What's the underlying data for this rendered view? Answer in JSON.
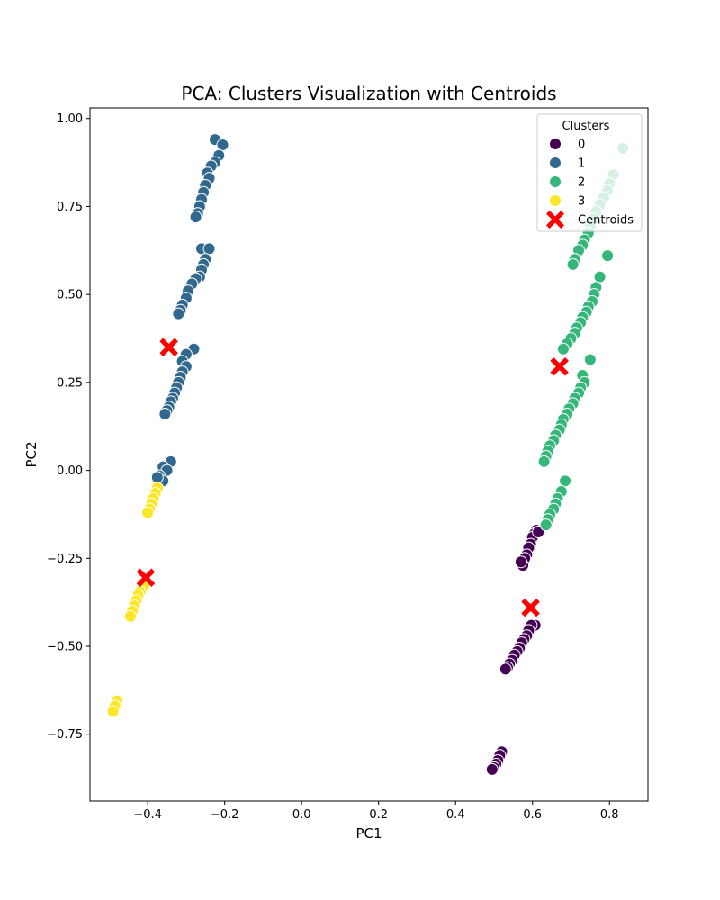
{
  "chart_data": {
    "type": "scatter",
    "title": "PCA: Clusters Visualization with Centroids",
    "xlabel": "PC1",
    "ylabel": "PC2",
    "xlim": [
      -0.55,
      0.9
    ],
    "ylim": [
      -0.94,
      1.03
    ],
    "xticks": [
      -0.4,
      -0.2,
      0.0,
      0.2,
      0.4,
      0.6,
      0.8
    ],
    "xtick_labels": [
      "−0.4",
      "−0.2",
      "0.0",
      "0.2",
      "0.4",
      "0.6",
      "0.8"
    ],
    "yticks": [
      -0.75,
      -0.5,
      -0.25,
      0.0,
      0.25,
      0.5,
      0.75,
      1.0
    ],
    "ytick_labels": [
      "−0.75",
      "−0.50",
      "−0.25",
      "0.00",
      "0.25",
      "0.50",
      "0.75",
      "1.00"
    ],
    "grid": false,
    "legend": {
      "title": "Clusters",
      "placement": "top-right"
    },
    "series": [
      {
        "name": "0",
        "color": "#440154",
        "points": [
          [
            0.61,
            -0.17
          ],
          [
            0.605,
            -0.18
          ],
          [
            0.6,
            -0.19
          ],
          [
            0.595,
            -0.21
          ],
          [
            0.59,
            -0.22
          ],
          [
            0.585,
            -0.24
          ],
          [
            0.58,
            -0.25
          ],
          [
            0.575,
            -0.27
          ],
          [
            0.57,
            -0.26
          ],
          [
            0.615,
            -0.175
          ],
          [
            0.607,
            -0.44
          ],
          [
            0.597,
            -0.44
          ],
          [
            0.59,
            -0.455
          ],
          [
            0.585,
            -0.47
          ],
          [
            0.578,
            -0.48
          ],
          [
            0.572,
            -0.49
          ],
          [
            0.566,
            -0.505
          ],
          [
            0.56,
            -0.515
          ],
          [
            0.553,
            -0.525
          ],
          [
            0.547,
            -0.54
          ],
          [
            0.54,
            -0.55
          ],
          [
            0.535,
            -0.56
          ],
          [
            0.53,
            -0.565
          ],
          [
            0.52,
            -0.8
          ],
          [
            0.515,
            -0.81
          ],
          [
            0.51,
            -0.825
          ],
          [
            0.505,
            -0.835
          ],
          [
            0.5,
            -0.845
          ],
          [
            0.495,
            -0.85
          ]
        ]
      },
      {
        "name": "1",
        "color": "#31688e",
        "points": [
          [
            -0.225,
            0.94
          ],
          [
            -0.205,
            0.925
          ],
          [
            -0.215,
            0.895
          ],
          [
            -0.225,
            0.875
          ],
          [
            -0.235,
            0.865
          ],
          [
            -0.245,
            0.845
          ],
          [
            -0.24,
            0.83
          ],
          [
            -0.25,
            0.81
          ],
          [
            -0.255,
            0.79
          ],
          [
            -0.26,
            0.77
          ],
          [
            -0.265,
            0.75
          ],
          [
            -0.27,
            0.73
          ],
          [
            -0.275,
            0.72
          ],
          [
            -0.26,
            0.63
          ],
          [
            -0.24,
            0.63
          ],
          [
            -0.25,
            0.6
          ],
          [
            -0.255,
            0.585
          ],
          [
            -0.26,
            0.57
          ],
          [
            -0.265,
            0.55
          ],
          [
            -0.275,
            0.545
          ],
          [
            -0.285,
            0.53
          ],
          [
            -0.295,
            0.51
          ],
          [
            -0.3,
            0.49
          ],
          [
            -0.31,
            0.47
          ],
          [
            -0.315,
            0.455
          ],
          [
            -0.32,
            0.445
          ],
          [
            -0.28,
            0.345
          ],
          [
            -0.3,
            0.33
          ],
          [
            -0.31,
            0.31
          ],
          [
            -0.3,
            0.295
          ],
          [
            -0.31,
            0.28
          ],
          [
            -0.315,
            0.265
          ],
          [
            -0.32,
            0.25
          ],
          [
            -0.325,
            0.235
          ],
          [
            -0.33,
            0.22
          ],
          [
            -0.335,
            0.205
          ],
          [
            -0.34,
            0.195
          ],
          [
            -0.345,
            0.18
          ],
          [
            -0.35,
            0.17
          ],
          [
            -0.355,
            0.16
          ],
          [
            -0.34,
            0.025
          ],
          [
            -0.36,
            0.01
          ],
          [
            -0.35,
            0.0
          ],
          [
            -0.37,
            -0.015
          ],
          [
            -0.36,
            -0.03
          ],
          [
            -0.375,
            -0.02
          ]
        ]
      },
      {
        "name": "2",
        "color": "#35b779",
        "points": [
          [
            0.835,
            0.915
          ],
          [
            0.81,
            0.84
          ],
          [
            0.8,
            0.815
          ],
          [
            0.795,
            0.795
          ],
          [
            0.785,
            0.775
          ],
          [
            0.775,
            0.755
          ],
          [
            0.765,
            0.735
          ],
          [
            0.76,
            0.715
          ],
          [
            0.75,
            0.695
          ],
          [
            0.745,
            0.675
          ],
          [
            0.735,
            0.655
          ],
          [
            0.73,
            0.64
          ],
          [
            0.72,
            0.625
          ],
          [
            0.71,
            0.6
          ],
          [
            0.705,
            0.585
          ],
          [
            0.795,
            0.61
          ],
          [
            0.775,
            0.55
          ],
          [
            0.765,
            0.52
          ],
          [
            0.76,
            0.5
          ],
          [
            0.755,
            0.48
          ],
          [
            0.745,
            0.465
          ],
          [
            0.74,
            0.45
          ],
          [
            0.73,
            0.435
          ],
          [
            0.725,
            0.42
          ],
          [
            0.715,
            0.405
          ],
          [
            0.71,
            0.39
          ],
          [
            0.7,
            0.375
          ],
          [
            0.69,
            0.36
          ],
          [
            0.68,
            0.345
          ],
          [
            0.75,
            0.315
          ],
          [
            0.73,
            0.27
          ],
          [
            0.735,
            0.25
          ],
          [
            0.725,
            0.235
          ],
          [
            0.72,
            0.22
          ],
          [
            0.71,
            0.205
          ],
          [
            0.705,
            0.19
          ],
          [
            0.695,
            0.175
          ],
          [
            0.69,
            0.16
          ],
          [
            0.68,
            0.145
          ],
          [
            0.675,
            0.13
          ],
          [
            0.67,
            0.115
          ],
          [
            0.66,
            0.1
          ],
          [
            0.655,
            0.085
          ],
          [
            0.645,
            0.07
          ],
          [
            0.64,
            0.055
          ],
          [
            0.635,
            0.04
          ],
          [
            0.63,
            0.025
          ],
          [
            0.685,
            -0.03
          ],
          [
            0.675,
            -0.06
          ],
          [
            0.665,
            -0.08
          ],
          [
            0.66,
            -0.095
          ],
          [
            0.655,
            -0.11
          ],
          [
            0.645,
            -0.125
          ],
          [
            0.64,
            -0.14
          ],
          [
            0.635,
            -0.155
          ]
        ]
      },
      {
        "name": "3",
        "color": "#fde725",
        "points": [
          [
            -0.375,
            -0.05
          ],
          [
            -0.38,
            -0.065
          ],
          [
            -0.385,
            -0.08
          ],
          [
            -0.39,
            -0.095
          ],
          [
            -0.395,
            -0.11
          ],
          [
            -0.4,
            -0.12
          ],
          [
            -0.41,
            -0.33
          ],
          [
            -0.42,
            -0.345
          ],
          [
            -0.425,
            -0.355
          ],
          [
            -0.43,
            -0.37
          ],
          [
            -0.435,
            -0.385
          ],
          [
            -0.44,
            -0.4
          ],
          [
            -0.445,
            -0.415
          ],
          [
            -0.48,
            -0.655
          ],
          [
            -0.485,
            -0.67
          ],
          [
            -0.49,
            -0.685
          ]
        ]
      }
    ],
    "centroids": {
      "name": "Centroids",
      "color": "#ff0000",
      "points": [
        [
          -0.345,
          0.35
        ],
        [
          0.67,
          0.295
        ],
        [
          -0.405,
          -0.305
        ],
        [
          0.595,
          -0.39
        ]
      ]
    }
  }
}
